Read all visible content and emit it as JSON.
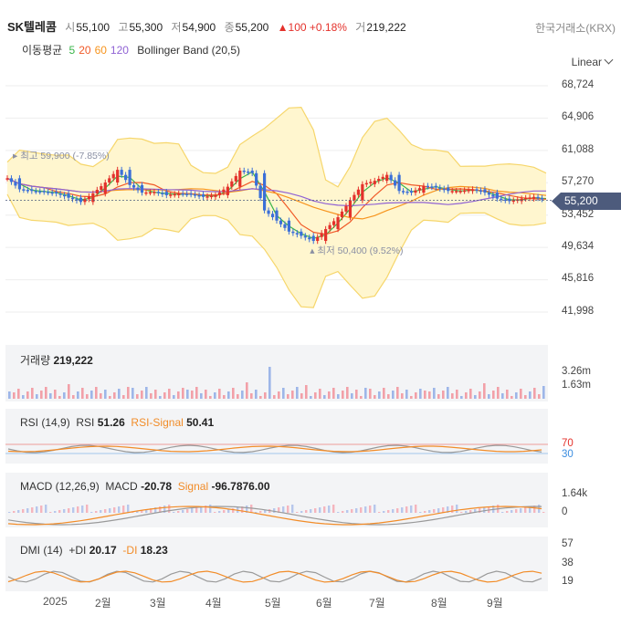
{
  "header": {
    "name": "SK텔레콤",
    "open_label": "시",
    "open": "55,100",
    "high_label": "고",
    "high": "55,300",
    "low_label": "저",
    "low": "54,900",
    "close_label": "종",
    "close": "55,200",
    "change": "▲100 +0.18%",
    "vol_label": "거",
    "volume": "219,222",
    "exchange": "한국거래소(KRX)"
  },
  "indicators": {
    "ma_label": "이동평균",
    "ma_periods": [
      "5",
      "20",
      "60",
      "120"
    ],
    "ma_colors": [
      "#3ab54a",
      "#f05a28",
      "#f7941d",
      "#8f62d4"
    ],
    "bb_label": "Bollinger Band (20,5)"
  },
  "scale_mode": "Linear",
  "colors": {
    "up": "#e4312b",
    "down": "#3b6fd8",
    "band_fill": "#fff6cf",
    "band_line": "#f6d66b",
    "badge": "#4d5b7c",
    "rsi_line": "#f28c28",
    "rsi_base": "#999999",
    "rsi_high": "#e4312b",
    "rsi_low": "#3b8de0"
  },
  "price_axis": [
    "68,724",
    "64,906",
    "61,088",
    "57,270",
    "53,452",
    "49,634",
    "45,816",
    "41,998"
  ],
  "last_price": "55,200",
  "max_annot": "최고 59,900 (-7.85%)",
  "min_annot": "최저 50,400 (9.52%)",
  "volume_pane": {
    "label": "거래량",
    "value": "219,222",
    "ticks": [
      "3.26m",
      "1.63m"
    ]
  },
  "rsi_pane": {
    "label": "RSI (14,9)",
    "rsi_label": "RSI",
    "rsi_value": "51.26",
    "signal_label": "RSI-Signal",
    "signal_value": "50.41",
    "ticks": [
      "70",
      "30"
    ]
  },
  "macd_pane": {
    "label": "MACD (12,26,9)",
    "macd_label": "MACD",
    "macd_value": "-20.78",
    "signal_label": "Signal",
    "signal_value": "-96.7876.00",
    "ticks": [
      "1.64k",
      "0"
    ]
  },
  "dmi_pane": {
    "label": "DMI (14)",
    "pdi_label": "+DI",
    "pdi_value": "20.17",
    "mdi_label": "-DI",
    "mdi_value": "18.23",
    "ticks": [
      "57",
      "38",
      "19"
    ]
  },
  "x_axis": [
    "2025",
    "2월",
    "3월",
    "4월",
    "5월",
    "6월",
    "7월",
    "8월",
    "9월"
  ],
  "chart_data": {
    "type": "line",
    "x_labels": [
      "2025",
      "2월",
      "3월",
      "4월",
      "5월",
      "6월",
      "7월",
      "8월",
      "9월"
    ],
    "ylim": [
      41998,
      68724
    ],
    "y_ticks": [
      68724,
      64906,
      61088,
      57270,
      53452,
      49634,
      45816,
      41998
    ],
    "close": [
      57800,
      56500,
      56300,
      56200,
      56000,
      55500,
      55000,
      56000,
      57300,
      58800,
      57000,
      56100,
      56200,
      55800,
      56000,
      55900,
      55600,
      55800,
      56800,
      58700,
      58400,
      54000,
      52800,
      51500,
      51000,
      50400,
      51800,
      53200,
      55200,
      57100,
      57500,
      58200,
      56300,
      56100,
      56900,
      56700,
      56300,
      56300,
      56500,
      56100,
      55400,
      55100,
      55400,
      55600,
      55200
    ],
    "max": 59900,
    "min": 50400,
    "last": 55200
  }
}
